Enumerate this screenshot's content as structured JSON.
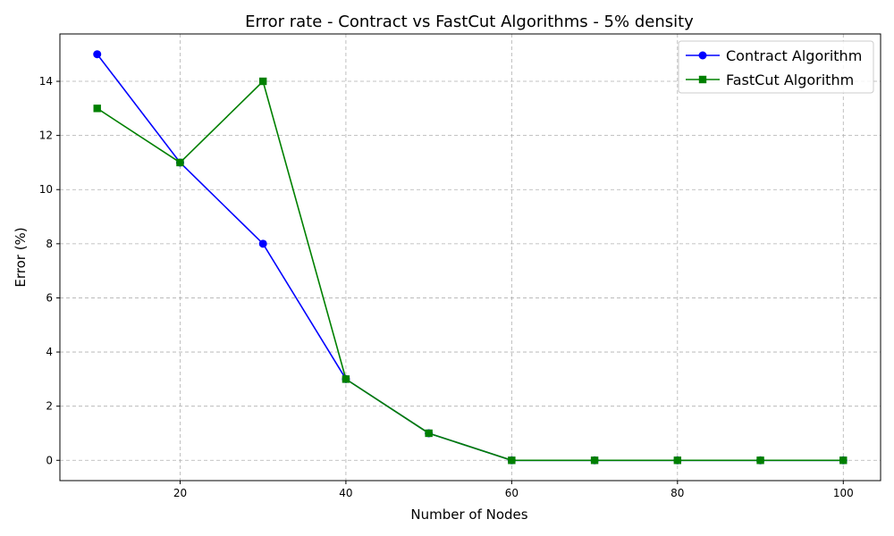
{
  "chart_data": {
    "type": "line",
    "title": "Error rate - Contract vs FastCut Algorithms - 5% density",
    "xlabel": "Number of Nodes",
    "ylabel": "Error (%)",
    "x": [
      10,
      20,
      30,
      40,
      50,
      60,
      70,
      80,
      90,
      100
    ],
    "xlim": [
      5.5,
      104.5
    ],
    "ylim": [
      -0.75,
      15.75
    ],
    "xticks": [
      20,
      40,
      60,
      80,
      100
    ],
    "yticks": [
      0,
      2,
      4,
      6,
      8,
      10,
      12,
      14
    ],
    "grid": true,
    "legend_position": "top-right",
    "series": [
      {
        "name": "Contract Algorithm",
        "color": "#0000ff",
        "marker": "circle",
        "values": [
          15,
          11,
          8,
          3,
          1,
          0,
          0,
          0,
          0,
          0
        ]
      },
      {
        "name": "FastCut Algorithm",
        "color": "#008000",
        "marker": "square",
        "values": [
          13,
          11,
          14,
          3,
          1,
          0,
          0,
          0,
          0,
          0
        ]
      }
    ]
  }
}
